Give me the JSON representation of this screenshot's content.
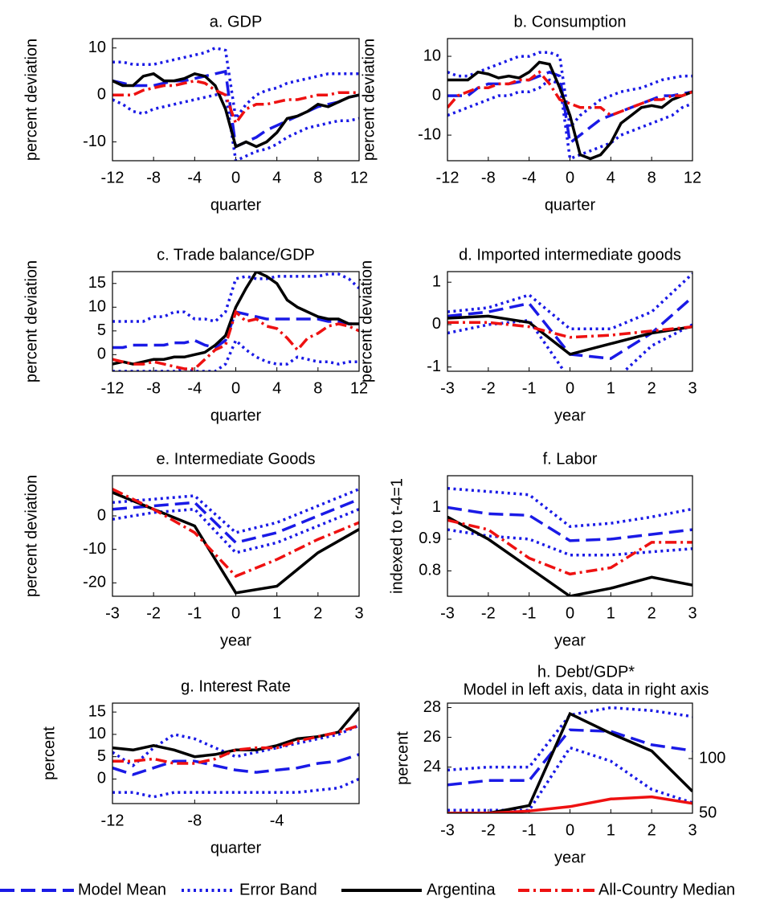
{
  "chart_data": [
    {
      "type": "line",
      "title": "a. GDP",
      "xlabel": "quarter",
      "ylabel": "percent deviation",
      "x": [
        -12,
        -11,
        -10,
        -9,
        -8,
        -7,
        -6,
        -5,
        -4,
        -3,
        -2,
        -1,
        0,
        1,
        2,
        3,
        4,
        5,
        6,
        7,
        8,
        9,
        10,
        11,
        12
      ],
      "xlim": [
        -12,
        12
      ],
      "xticks": [
        -12,
        -8,
        -4,
        0,
        4,
        8,
        12
      ],
      "ylim": [
        -14,
        12
      ],
      "yticks": [
        -10,
        0,
        10
      ],
      "series": [
        {
          "name": "Model Mean",
          "color": "#1a1ae6",
          "style": "dashed",
          "values": [
            3,
            2.5,
            2,
            2,
            2,
            2.5,
            3,
            3,
            3.5,
            4,
            4.5,
            5,
            -11,
            -10,
            -9,
            -7.5,
            -6.5,
            -5.5,
            -4.5,
            -3.5,
            -2.5,
            -2,
            -1.5,
            -0.5,
            0
          ]
        },
        {
          "name": "Error Band",
          "color": "#1a1ae6",
          "style": "dotted",
          "upper": [
            7,
            7,
            6.5,
            6.5,
            6.5,
            7,
            7.5,
            8,
            8.5,
            9,
            10,
            9.5,
            -5,
            -2,
            0,
            1,
            1.5,
            2.5,
            3,
            3.5,
            4,
            4.5,
            4.5,
            4.5,
            4.5
          ],
          "lower": [
            -1,
            -2,
            -3.5,
            -4,
            -3,
            -2.5,
            -2,
            -1.5,
            -1,
            -0.5,
            0,
            0.5,
            -14,
            -13,
            -12,
            -11.5,
            -10.5,
            -9,
            -8,
            -7,
            -6.5,
            -6,
            -5.5,
            -5.5,
            -5
          ]
        },
        {
          "name": "Argentina",
          "color": "#000000",
          "style": "solid",
          "values": [
            3,
            2,
            2,
            4,
            4.5,
            3,
            3,
            3.5,
            4.5,
            4,
            2,
            -3,
            -11,
            -10,
            -11,
            -10,
            -8,
            -5,
            -4.5,
            -3.5,
            -2,
            -2.5,
            -1.5,
            -0.5,
            0
          ]
        },
        {
          "name": "All-Country Median",
          "color": "#ee1111",
          "style": "dashdot",
          "values": [
            0,
            0,
            0,
            1,
            1.5,
            2,
            2,
            2.5,
            3,
            2.5,
            1,
            0,
            -6,
            -3,
            -2,
            -2,
            -1.5,
            -1,
            -1,
            -0.5,
            0,
            0,
            0.5,
            0.5,
            0.5
          ]
        }
      ]
    },
    {
      "type": "line",
      "title": "b. Consumption",
      "xlabel": "quarter",
      "ylabel": "percent deviation",
      "x": [
        -12,
        -11,
        -10,
        -9,
        -8,
        -7,
        -6,
        -5,
        -4,
        -3,
        -2,
        -1,
        0,
        1,
        2,
        3,
        4,
        5,
        6,
        7,
        8,
        9,
        10,
        11,
        12
      ],
      "xlim": [
        -12,
        12
      ],
      "xticks": [
        -12,
        -8,
        -4,
        0,
        4,
        8,
        12
      ],
      "ylim": [
        -16.5,
        14.5
      ],
      "yticks": [
        -10,
        0,
        10
      ],
      "series": [
        {
          "name": "Model Mean",
          "color": "#1a1ae6",
          "style": "dashed",
          "values": [
            0,
            0,
            0,
            2,
            3,
            3,
            3,
            3.5,
            4,
            5,
            6,
            5,
            -12,
            -10,
            -8,
            -6,
            -5,
            -4,
            -3,
            -2,
            -1,
            0,
            0,
            0.5,
            1
          ]
        },
        {
          "name": "Error Band",
          "color": "#1a1ae6",
          "style": "dotted",
          "upper": [
            6,
            5,
            5,
            6,
            7,
            8,
            9,
            10,
            10,
            11,
            11,
            10,
            -8,
            -5,
            -3,
            -1,
            0,
            1,
            1.5,
            2,
            3,
            4,
            4.5,
            5,
            5
          ],
          "lower": [
            -5,
            -4,
            -3,
            -2,
            -1,
            0,
            0,
            1,
            1,
            2,
            4,
            3,
            -16,
            -15,
            -14,
            -13,
            -12,
            -10,
            -9,
            -8,
            -7,
            -6,
            -5,
            -3,
            -2
          ]
        },
        {
          "name": "Argentina",
          "color": "#000000",
          "style": "solid",
          "values": [
            4,
            4,
            4,
            6,
            5.5,
            4.5,
            5,
            4.5,
            6,
            8.5,
            8,
            2,
            -5,
            -15,
            -16,
            -15,
            -12,
            -7,
            -5,
            -3,
            -2.5,
            -3,
            -1,
            0,
            1
          ]
        },
        {
          "name": "All-Country Median",
          "color": "#ee1111",
          "style": "dashdot",
          "values": [
            -3,
            0,
            1,
            2,
            2,
            3,
            3,
            4,
            4,
            6,
            3,
            -1,
            -2,
            -3,
            -3,
            -3,
            -5,
            -4,
            -3,
            -2,
            -1,
            -1,
            0,
            0,
            1
          ]
        }
      ]
    },
    {
      "type": "line",
      "title": "c. Trade balance/GDP",
      "xlabel": "quarter",
      "ylabel": "percent deviation",
      "x": [
        -12,
        -11,
        -10,
        -9,
        -8,
        -7,
        -6,
        -5,
        -4,
        -3,
        -2,
        -1,
        0,
        1,
        2,
        3,
        4,
        5,
        6,
        7,
        8,
        9,
        10,
        11,
        12
      ],
      "xlim": [
        -12,
        12
      ],
      "xticks": [
        -12,
        -8,
        -4,
        0,
        4,
        8,
        12
      ],
      "ylim": [
        -3.5,
        17.5
      ],
      "yticks": [
        0,
        5,
        10,
        15
      ],
      "series": [
        {
          "name": "Model Mean",
          "color": "#1a1ae6",
          "style": "dashed",
          "values": [
            1.5,
            1.5,
            2,
            2,
            2,
            2,
            2.5,
            2.5,
            3,
            2,
            1.5,
            3,
            9,
            8.5,
            8,
            7.5,
            7.5,
            7.5,
            7.5,
            7.5,
            7.5,
            7,
            7,
            6.5,
            6.5
          ]
        },
        {
          "name": "Error Band",
          "color": "#1a1ae6",
          "style": "dotted",
          "upper": [
            7,
            7,
            7,
            7,
            8,
            8,
            9,
            9,
            7.5,
            7.5,
            7,
            9,
            16,
            16.5,
            16,
            16,
            16.5,
            16.5,
            16.5,
            16.5,
            16.5,
            17,
            17,
            16,
            14
          ],
          "lower": [
            -3.5,
            -3.5,
            -3.5,
            -3.5,
            -3.5,
            -3.5,
            -3.5,
            -3,
            -3.5,
            -3.5,
            -3.5,
            -2,
            3,
            1,
            -0.5,
            -1.5,
            -2,
            -2,
            -0.5,
            -1,
            -1.5,
            -1.5,
            -2,
            -1.5,
            -1.5
          ]
        },
        {
          "name": "Argentina",
          "color": "#000000",
          "style": "solid",
          "values": [
            -2,
            -1.5,
            -2,
            -1.5,
            -1,
            -1,
            -0.5,
            -0.5,
            0,
            0.5,
            2,
            4,
            10,
            14,
            17.5,
            16.5,
            15,
            11.5,
            10,
            9,
            8,
            7.5,
            7.5,
            6.5,
            6.5
          ]
        },
        {
          "name": "All-Country Median",
          "color": "#ee1111",
          "style": "dashdot",
          "values": [
            -1,
            -1.5,
            -2,
            -2,
            -1.5,
            -2,
            -2.5,
            -3,
            -3,
            -1,
            1,
            2,
            9,
            7,
            7.5,
            6,
            5.5,
            3.5,
            1,
            3.5,
            4.5,
            6,
            6.5,
            6,
            5
          ]
        }
      ]
    },
    {
      "type": "line",
      "title": "d. Imported intermediate goods",
      "xlabel": "year",
      "ylabel": "percent deviation",
      "x": [
        -3,
        -2,
        -1,
        0,
        1,
        2,
        3
      ],
      "xlim": [
        -3,
        3
      ],
      "xticks": [
        -3,
        -2,
        -1,
        0,
        1,
        2,
        3
      ],
      "ylim": [
        -1.1,
        1.25
      ],
      "yticks": [
        -1,
        0,
        1
      ],
      "series": [
        {
          "name": "Model Mean",
          "color": "#1a1ae6",
          "style": "dashed",
          "values": [
            0.2,
            0.3,
            0.5,
            -0.7,
            -0.8,
            -0.2,
            0.65
          ]
        },
        {
          "name": "Error Band",
          "color": "#1a1ae6",
          "style": "dotted",
          "upper": [
            0.3,
            0.4,
            0.7,
            -0.1,
            -0.1,
            0.3,
            1.2
          ],
          "lower": [
            -0.2,
            0,
            0.1,
            -1.3,
            -1.4,
            -0.5,
            0
          ]
        },
        {
          "name": "Argentina",
          "color": "#000000",
          "style": "solid",
          "values": [
            0.15,
            0.2,
            0.05,
            -0.7,
            -0.45,
            -0.2,
            -0.05
          ]
        },
        {
          "name": "All-Country Median",
          "color": "#ee1111",
          "style": "dashdot",
          "values": [
            0.05,
            0.05,
            -0.05,
            -0.3,
            -0.25,
            -0.15,
            -0.05
          ]
        }
      ]
    },
    {
      "type": "line",
      "title": "e. Intermediate Goods",
      "xlabel": "year",
      "ylabel": "percent deviation",
      "x": [
        -3,
        -2,
        -1,
        0,
        1,
        2,
        3
      ],
      "xlim": [
        -3,
        3
      ],
      "xticks": [
        -3,
        -2,
        -1,
        0,
        1,
        2,
        3
      ],
      "ylim": [
        -24,
        12
      ],
      "yticks": [
        -20,
        -10,
        0
      ],
      "series": [
        {
          "name": "Model Mean",
          "color": "#1a1ae6",
          "style": "dashed",
          "values": [
            2,
            3,
            4,
            -8,
            -5,
            0,
            5
          ]
        },
        {
          "name": "Error Band",
          "color": "#1a1ae6",
          "style": "dotted",
          "upper": [
            4,
            5,
            6,
            -5,
            -2,
            3,
            8
          ],
          "lower": [
            -1,
            1,
            2,
            -11,
            -8,
            -3,
            2
          ]
        },
        {
          "name": "Argentina",
          "color": "#000000",
          "style": "solid",
          "values": [
            7,
            2,
            -3,
            -23,
            -21,
            -11,
            -4
          ]
        },
        {
          "name": "All-Country Median",
          "color": "#ee1111",
          "style": "dashdot",
          "values": [
            8,
            2,
            -5,
            -18,
            -13,
            -7,
            -2
          ]
        }
      ]
    },
    {
      "type": "line",
      "title": "f. Labor",
      "xlabel": "year",
      "ylabel": "indexed to t-4=1",
      "x": [
        -3,
        -2,
        -1,
        0,
        1,
        2,
        3
      ],
      "xlim": [
        -3,
        3
      ],
      "xticks": [
        -3,
        -2,
        -1,
        0,
        1,
        2,
        3
      ],
      "ylim": [
        0.72,
        1.1
      ],
      "yticks": [
        0.8,
        0.9,
        1
      ],
      "series": [
        {
          "name": "Model Mean",
          "color": "#1a1ae6",
          "style": "dashed",
          "values": [
            1,
            0.98,
            0.975,
            0.895,
            0.9,
            0.915,
            0.93
          ]
        },
        {
          "name": "Error Band",
          "color": "#1a1ae6",
          "style": "dotted",
          "upper": [
            1.06,
            1.05,
            1.04,
            0.94,
            0.95,
            0.97,
            0.995
          ],
          "lower": [
            0.93,
            0.91,
            0.9,
            0.85,
            0.85,
            0.86,
            0.87
          ]
        },
        {
          "name": "Argentina",
          "color": "#000000",
          "style": "solid",
          "values": [
            0.97,
            0.9,
            0.81,
            0.72,
            0.745,
            0.78,
            0.755
          ]
        },
        {
          "name": "All-Country Median",
          "color": "#ee1111",
          "style": "dashdot",
          "values": [
            0.96,
            0.93,
            0.84,
            0.79,
            0.81,
            0.89,
            0.89
          ]
        }
      ]
    },
    {
      "type": "line",
      "title": "g. Interest Rate",
      "xlabel": "quarter",
      "ylabel": "percent",
      "x": [
        -12,
        -11,
        -10,
        -9,
        -8,
        -7,
        -6,
        -5,
        -4,
        -3,
        -2,
        -1,
        0
      ],
      "xlim": [
        -12,
        0
      ],
      "xticks": [
        -12,
        -8,
        -4
      ],
      "ylim": [
        -5.5,
        17
      ],
      "yticks": [
        0,
        5,
        10,
        15
      ],
      "series": [
        {
          "name": "Model Mean",
          "color": "#1a1ae6",
          "style": "dashed",
          "values": [
            2.5,
            1,
            2.5,
            4,
            4,
            3,
            2,
            1.5,
            2,
            2.5,
            3.5,
            4,
            5.5
          ]
        },
        {
          "name": "Error Band",
          "color": "#1a1ae6",
          "style": "dotted",
          "upper": [
            6,
            3,
            7,
            10,
            9,
            7,
            5,
            6,
            7,
            8,
            9,
            10,
            12
          ],
          "lower": [
            -3,
            -3,
            -4,
            -3,
            -3,
            -3,
            -3,
            -3,
            -3,
            -3,
            -2.5,
            -2,
            0
          ]
        },
        {
          "name": "Argentina",
          "color": "#000000",
          "style": "solid",
          "values": [
            7,
            6.5,
            7.5,
            6.5,
            5,
            5.5,
            6.5,
            6.5,
            7.5,
            9,
            9.5,
            10.5,
            16
          ]
        },
        {
          "name": "All-Country Median",
          "color": "#ee1111",
          "style": "dashdot",
          "values": [
            4,
            4,
            4.5,
            3.5,
            3.5,
            4.5,
            6.5,
            7,
            7,
            8.5,
            9.5,
            10.5,
            12
          ]
        }
      ]
    },
    {
      "type": "line",
      "title": "h. Debt/GDP*",
      "subtitle": "Model in left axis, data in right axis",
      "xlabel": "year",
      "ylabel": "percent",
      "x": [
        -3,
        -2,
        -1,
        0,
        1,
        2,
        3
      ],
      "xlim": [
        -3,
        3
      ],
      "xticks": [
        -3,
        -2,
        -1,
        0,
        1,
        2,
        3
      ],
      "ylim": [
        20.9,
        28.3
      ],
      "yticks": [
        24,
        26,
        28
      ],
      "y2lim": [
        50,
        150.7
      ],
      "y2ticks": [
        50,
        100
      ],
      "series": [
        {
          "name": "Model Mean",
          "color": "#1a1ae6",
          "style": "dashed",
          "values": [
            22.8,
            23.1,
            23.1,
            26.5,
            26.4,
            25.5,
            25.1
          ]
        },
        {
          "name": "Error Band",
          "color": "#1a1ae6",
          "style": "dotted",
          "upper": [
            23.8,
            24,
            24,
            27.5,
            28,
            27.8,
            27.4
          ],
          "lower": [
            21.1,
            21.1,
            21.1,
            25.3,
            24.4,
            22.5,
            21.6
          ]
        },
        {
          "name": "Argentina",
          "color": "#000000",
          "style": "solid",
          "axis": "y2",
          "values": [
            50,
            50,
            57,
            141,
            123,
            107,
            70
          ]
        },
        {
          "name": "All-Country Median",
          "color": "#ee1111",
          "style": "solid",
          "axis": "y2",
          "values": [
            50,
            50,
            52,
            56,
            63,
            65,
            59
          ]
        }
      ]
    }
  ]
}
